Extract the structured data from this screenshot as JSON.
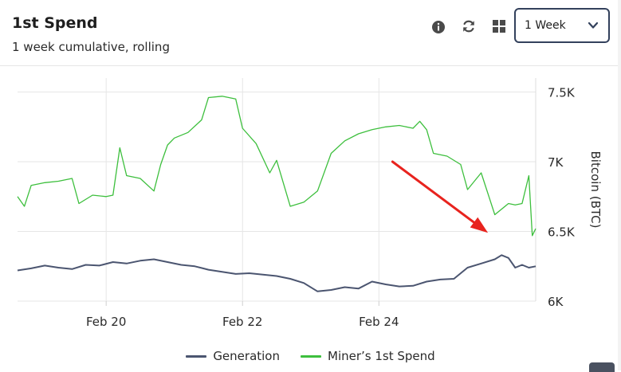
{
  "header": {
    "title": "1st Spend",
    "subtitle": "1 week cumulative, rolling"
  },
  "toolbar": {
    "icons": [
      "info-icon",
      "refresh-icon",
      "grid-icon"
    ],
    "range_select": {
      "value": "1 Week"
    }
  },
  "colors": {
    "generation": "#4b5570",
    "spend": "#3dbf3d",
    "arrow": "#e8231e",
    "grid": "#e6e6e6"
  },
  "chart_data": {
    "type": "line",
    "ylabel": "Bitcoin (BTC)",
    "ylim": [
      6000,
      7600
    ],
    "y_ticks": [
      6000,
      6500,
      7000,
      7500
    ],
    "y_tick_labels": [
      "6K",
      "6.5K",
      "7K",
      "7.5K"
    ],
    "y_axis_position": "right",
    "x_ticks": [
      {
        "x": 20,
        "label": "Feb 20"
      },
      {
        "x": 22,
        "label": "Feb 22"
      },
      {
        "x": 24,
        "label": "Feb 24"
      }
    ],
    "xlim": [
      18.7,
      26.3
    ],
    "grid": true,
    "legend": "bottom",
    "series": [
      {
        "name": "Generation",
        "points": [
          [
            18.7,
            6220
          ],
          [
            18.9,
            6235
          ],
          [
            19.1,
            6255
          ],
          [
            19.3,
            6240
          ],
          [
            19.5,
            6230
          ],
          [
            19.7,
            6260
          ],
          [
            19.9,
            6255
          ],
          [
            20.1,
            6280
          ],
          [
            20.3,
            6270
          ],
          [
            20.5,
            6290
          ],
          [
            20.7,
            6300
          ],
          [
            20.9,
            6280
          ],
          [
            21.1,
            6260
          ],
          [
            21.3,
            6250
          ],
          [
            21.5,
            6225
          ],
          [
            21.7,
            6210
          ],
          [
            21.9,
            6195
          ],
          [
            22.1,
            6200
          ],
          [
            22.3,
            6190
          ],
          [
            22.5,
            6180
          ],
          [
            22.7,
            6160
          ],
          [
            22.9,
            6130
          ],
          [
            23.1,
            6070
          ],
          [
            23.3,
            6080
          ],
          [
            23.5,
            6100
          ],
          [
            23.7,
            6090
          ],
          [
            23.9,
            6140
          ],
          [
            24.1,
            6120
          ],
          [
            24.3,
            6105
          ],
          [
            24.5,
            6110
          ],
          [
            24.7,
            6140
          ],
          [
            24.9,
            6155
          ],
          [
            25.1,
            6160
          ],
          [
            25.3,
            6240
          ],
          [
            25.5,
            6270
          ],
          [
            25.7,
            6300
          ],
          [
            25.8,
            6330
          ],
          [
            25.9,
            6310
          ],
          [
            26.0,
            6240
          ],
          [
            26.1,
            6260
          ],
          [
            26.2,
            6240
          ],
          [
            26.3,
            6250
          ]
        ]
      },
      {
        "name": "Miner’s 1st Spend",
        "points": [
          [
            18.7,
            6750
          ],
          [
            18.8,
            6680
          ],
          [
            18.9,
            6830
          ],
          [
            19.1,
            6850
          ],
          [
            19.3,
            6860
          ],
          [
            19.5,
            6880
          ],
          [
            19.6,
            6700
          ],
          [
            19.8,
            6760
          ],
          [
            20.0,
            6750
          ],
          [
            20.1,
            6760
          ],
          [
            20.2,
            7100
          ],
          [
            20.3,
            6900
          ],
          [
            20.5,
            6880
          ],
          [
            20.7,
            6790
          ],
          [
            20.8,
            6980
          ],
          [
            20.9,
            7120
          ],
          [
            21.0,
            7170
          ],
          [
            21.2,
            7210
          ],
          [
            21.4,
            7300
          ],
          [
            21.5,
            7460
          ],
          [
            21.7,
            7470
          ],
          [
            21.9,
            7450
          ],
          [
            22.0,
            7240
          ],
          [
            22.2,
            7130
          ],
          [
            22.4,
            6920
          ],
          [
            22.5,
            7010
          ],
          [
            22.7,
            6680
          ],
          [
            22.9,
            6710
          ],
          [
            23.1,
            6790
          ],
          [
            23.3,
            7060
          ],
          [
            23.5,
            7150
          ],
          [
            23.7,
            7200
          ],
          [
            23.9,
            7230
          ],
          [
            24.1,
            7250
          ],
          [
            24.3,
            7260
          ],
          [
            24.5,
            7240
          ],
          [
            24.6,
            7290
          ],
          [
            24.7,
            7230
          ],
          [
            24.8,
            7060
          ],
          [
            25.0,
            7040
          ],
          [
            25.2,
            6980
          ],
          [
            25.3,
            6800
          ],
          [
            25.5,
            6920
          ],
          [
            25.7,
            6620
          ],
          [
            25.9,
            6700
          ],
          [
            26.0,
            6690
          ],
          [
            26.1,
            6700
          ],
          [
            26.2,
            6900
          ],
          [
            26.25,
            6470
          ],
          [
            26.3,
            6520
          ]
        ]
      }
    ],
    "annotations": [
      {
        "type": "arrow",
        "from": [
          24.2,
          7000
        ],
        "to": [
          25.6,
          6490
        ]
      }
    ]
  }
}
